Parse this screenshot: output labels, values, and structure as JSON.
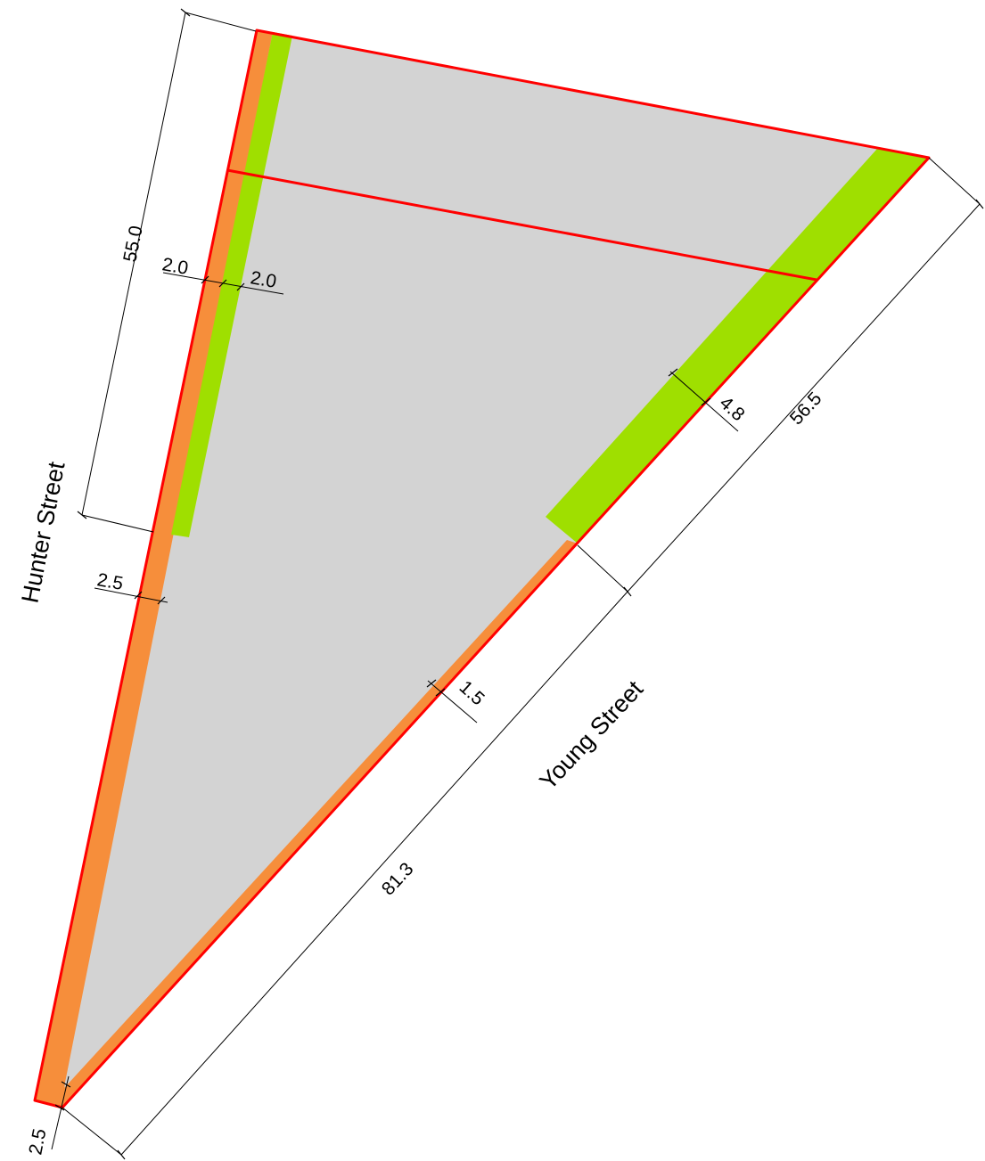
{
  "colors": {
    "site_fill": "#d3d3d3",
    "setback_orange": "#f68e3b",
    "landscape_green": "#9fdf00",
    "boundary_red": "#ff0000",
    "dimension_black": "#000000"
  },
  "streets": {
    "hunter": "Hunter Street",
    "young": "Young Street"
  },
  "dimensions": {
    "hunter_length": "55.0",
    "hunter_setback_orange": "2.0",
    "hunter_setback_green": "2.0",
    "hunter_setback_south": "2.5",
    "corner_setback": "2.5",
    "young_green_depth": "4.8",
    "young_north_length": "56.5",
    "young_setback": "1.5",
    "young_south_length": "81.3"
  }
}
